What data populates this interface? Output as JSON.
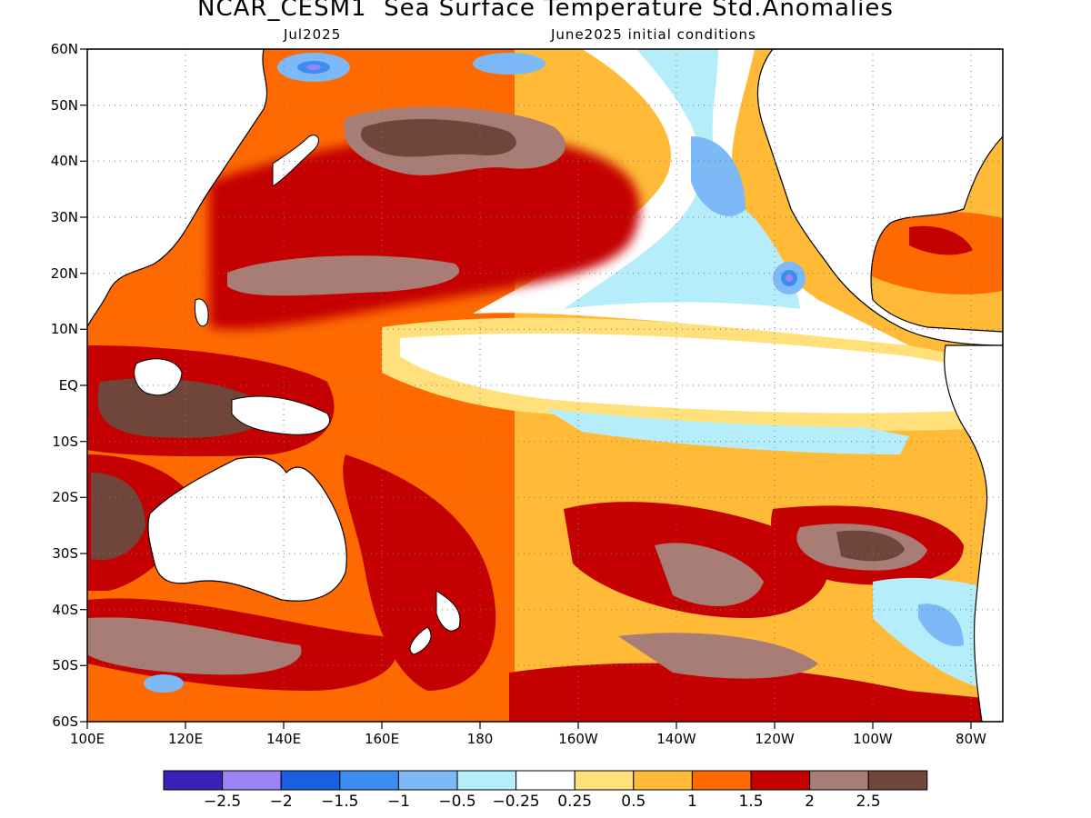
{
  "title": "NCAR_CESM1  Sea Surface Temperature Std.Anomalies",
  "subtitle_left": "Jul2025",
  "subtitle_right": "June2025 initial conditions",
  "lat_labels": [
    "60N",
    "50N",
    "40N",
    "30N",
    "20N",
    "10N",
    "EQ",
    "10S",
    "20S",
    "30S",
    "40S",
    "50S",
    "60S"
  ],
  "lon_labels": [
    "100E",
    "120E",
    "140E",
    "160E",
    "180",
    "160W",
    "140W",
    "120W",
    "100W",
    "80W"
  ],
  "colorbar": {
    "colors": [
      "#3a22b8",
      "#9c84f5",
      "#1a5fe0",
      "#3b8ef0",
      "#7db8f7",
      "#b5eefa",
      "#ffffff",
      "#ffe07a",
      "#ffbb38",
      "#ff6a00",
      "#c40000",
      "#a87d75",
      "#70453a"
    ],
    "labels": [
      "−2.5",
      "−2",
      "−1.5",
      "−1",
      "−0.5",
      "−0.25",
      "0.25",
      "0.5",
      "1",
      "1.5",
      "2",
      "2.5"
    ]
  }
}
